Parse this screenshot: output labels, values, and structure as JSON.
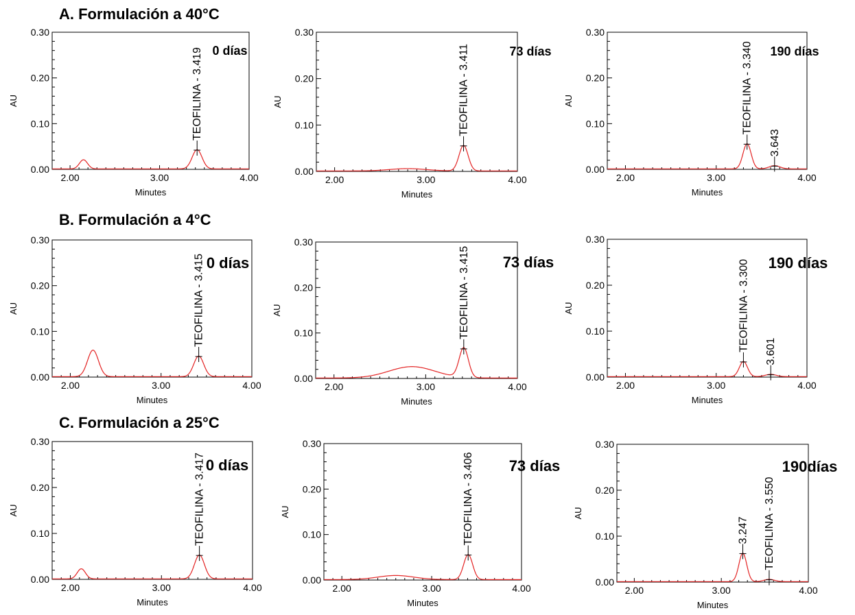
{
  "sections": [
    {
      "title": "A. Formulación a 40°C"
    },
    {
      "title": "B. Formulación a 4°C"
    },
    {
      "title": "C. Formulación a 25°C"
    }
  ],
  "chart_data": [
    {
      "type": "line",
      "section": "A",
      "day_label": "0 días",
      "xlabel": "Minutes",
      "ylabel": "AU",
      "xlim": [
        1.8,
        4.0
      ],
      "ylim": [
        0,
        0.3
      ],
      "xticks": [
        "2.00",
        "3.00",
        "4.00"
      ],
      "yticks": [
        "0.00",
        "0.10",
        "0.20",
        "0.30"
      ],
      "peaks": [
        {
          "x": 2.15,
          "y": 0.02,
          "w": 0.045
        },
        {
          "x": 3.419,
          "y": 0.042,
          "w": 0.055
        }
      ],
      "annotations": [
        {
          "label": "TEOFILINA - 3.419",
          "x": 3.419,
          "y": 0.042
        }
      ]
    },
    {
      "type": "line",
      "section": "A",
      "day_label": "73 días",
      "xlabel": "Minutes",
      "ylabel": "AU",
      "xlim": [
        1.8,
        4.0
      ],
      "ylim": [
        0,
        0.3
      ],
      "xticks": [
        "2.00",
        "3.00",
        "4.00"
      ],
      "yticks": [
        "0.00",
        "0.10",
        "0.20",
        "0.30"
      ],
      "peaks": [
        {
          "x": 2.8,
          "y": 0.005,
          "w": 0.2
        },
        {
          "x": 3.411,
          "y": 0.055,
          "w": 0.05
        }
      ],
      "annotations": [
        {
          "label": "TEOFILINA - 3.411",
          "x": 3.411,
          "y": 0.055
        }
      ]
    },
    {
      "type": "line",
      "section": "A",
      "day_label": "190 días",
      "xlabel": "Minutes",
      "ylabel": "AU",
      "xlim": [
        1.8,
        4.0
      ],
      "ylim": [
        0,
        0.3
      ],
      "xticks": [
        "2.00",
        "3.00",
        "4.00"
      ],
      "yticks": [
        "0.00",
        "0.10",
        "0.20",
        "0.30"
      ],
      "peaks": [
        {
          "x": 3.34,
          "y": 0.055,
          "w": 0.045
        },
        {
          "x": 3.643,
          "y": 0.007,
          "w": 0.06
        }
      ],
      "annotations": [
        {
          "label": "TEOFILINA - 3.340",
          "x": 3.34,
          "y": 0.055
        },
        {
          "label": "3.643",
          "x": 3.643,
          "y": 0.007
        }
      ]
    },
    {
      "type": "line",
      "section": "B",
      "day_label": "0 días",
      "xlabel": "Minutes",
      "ylabel": "AU",
      "xlim": [
        1.8,
        4.0
      ],
      "ylim": [
        0,
        0.3
      ],
      "xticks": [
        "2.00",
        "3.00",
        "4.00"
      ],
      "yticks": [
        "0.00",
        "0.10",
        "0.20",
        "0.30"
      ],
      "peaks": [
        {
          "x": 2.25,
          "y": 0.058,
          "w": 0.06
        },
        {
          "x": 3.415,
          "y": 0.045,
          "w": 0.055
        }
      ],
      "annotations": [
        {
          "label": "TEOFILINA - 3.415",
          "x": 3.415,
          "y": 0.045
        }
      ]
    },
    {
      "type": "line",
      "section": "B",
      "day_label": "73 días",
      "xlabel": "Minutes",
      "ylabel": "AU",
      "xlim": [
        1.8,
        4.0
      ],
      "ylim": [
        0,
        0.3
      ],
      "xticks": [
        "2.00",
        "3.00",
        "4.00"
      ],
      "yticks": [
        "0.00",
        "0.10",
        "0.20",
        "0.30"
      ],
      "peaks": [
        {
          "x": 2.85,
          "y": 0.025,
          "w": 0.25
        },
        {
          "x": 3.415,
          "y": 0.065,
          "w": 0.05
        }
      ],
      "annotations": [
        {
          "label": "TEOFILINA - 3.415",
          "x": 3.415,
          "y": 0.065
        }
      ]
    },
    {
      "type": "line",
      "section": "B",
      "day_label": "190 días",
      "xlabel": "Minutes",
      "ylabel": "AU",
      "xlim": [
        1.8,
        4.0
      ],
      "ylim": [
        0,
        0.3
      ],
      "xticks": [
        "2.00",
        "3.00",
        "4.00"
      ],
      "yticks": [
        "0.00",
        "0.10",
        "0.20",
        "0.30"
      ],
      "peaks": [
        {
          "x": 3.3,
          "y": 0.033,
          "w": 0.045
        },
        {
          "x": 3.601,
          "y": 0.005,
          "w": 0.06
        }
      ],
      "annotations": [
        {
          "label": "TEOFILINA - 3.300",
          "x": 3.3,
          "y": 0.033
        },
        {
          "label": "3.601",
          "x": 3.601,
          "y": 0.005
        }
      ]
    },
    {
      "type": "line",
      "section": "C",
      "day_label": "0 días",
      "xlabel": "Minutes",
      "ylabel": "AU",
      "xlim": [
        1.8,
        4.0
      ],
      "ylim": [
        0,
        0.3
      ],
      "xticks": [
        "2.00",
        "3.00",
        "4.00"
      ],
      "yticks": [
        "0.00",
        "0.10",
        "0.20",
        "0.30"
      ],
      "peaks": [
        {
          "x": 2.12,
          "y": 0.022,
          "w": 0.045
        },
        {
          "x": 3.417,
          "y": 0.052,
          "w": 0.055
        }
      ],
      "annotations": [
        {
          "label": "TEOFILINA - 3.417",
          "x": 3.417,
          "y": 0.052
        }
      ]
    },
    {
      "type": "line",
      "section": "C",
      "day_label": "73 días",
      "xlabel": "Minutes",
      "ylabel": "AU",
      "xlim": [
        1.8,
        4.0
      ],
      "ylim": [
        0,
        0.3
      ],
      "xticks": [
        "2.00",
        "3.00",
        "4.00"
      ],
      "yticks": [
        "0.00",
        "0.10",
        "0.20",
        "0.30"
      ],
      "peaks": [
        {
          "x": 2.6,
          "y": 0.009,
          "w": 0.2
        },
        {
          "x": 3.406,
          "y": 0.055,
          "w": 0.05
        }
      ],
      "annotations": [
        {
          "label": "TEOFILINA - 3.406",
          "x": 3.406,
          "y": 0.055
        }
      ]
    },
    {
      "type": "line",
      "section": "C",
      "day_label": "190días",
      "xlabel": "Minutes",
      "ylabel": "AU",
      "xlim": [
        1.8,
        4.0
      ],
      "ylim": [
        0,
        0.3
      ],
      "xticks": [
        "2.00",
        "3.00",
        "4.00"
      ],
      "yticks": [
        "0.00",
        "0.10",
        "0.20",
        "0.30"
      ],
      "peaks": [
        {
          "x": 3.247,
          "y": 0.062,
          "w": 0.045
        },
        {
          "x": 3.55,
          "y": 0.005,
          "w": 0.06
        }
      ],
      "annotations": [
        {
          "label": "3.247",
          "x": 3.247,
          "y": 0.062
        },
        {
          "label": "TEOFILINA - 3.550",
          "x": 3.55,
          "y": 0.005
        }
      ]
    }
  ]
}
